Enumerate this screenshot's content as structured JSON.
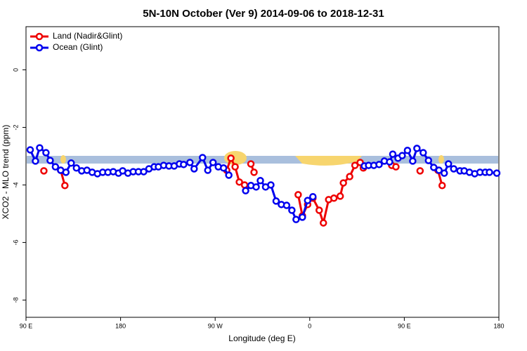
{
  "chart_data": {
    "type": "line",
    "title": "5N-10N October (Ver 9)   2014-09-06 to 2018-12-31",
    "xlabel": "Longitude (deg E)",
    "ylabel": "XCO2 - MLO trend (ppm)",
    "xlim": [
      90,
      540
    ],
    "ylim": [
      1.5,
      -8.6
    ],
    "xticks": [
      {
        "value": 90,
        "label": "90 E"
      },
      {
        "value": 180,
        "label": "180"
      },
      {
        "value": 270,
        "label": "90 W"
      },
      {
        "value": 360,
        "label": "0"
      },
      {
        "value": 450,
        "label": "90 E"
      },
      {
        "value": 540,
        "label": "180"
      }
    ],
    "yticks": [
      0,
      -2,
      -4,
      -6,
      -8
    ],
    "legend": "top-left",
    "series": [
      {
        "name": "Land (Nadir&Glint)",
        "color": "#ee0000",
        "x": [
          107,
          null,
          123,
          127,
          null,
          281,
          285,
          289,
          293,
          298,
          null,
          304,
          307,
          null,
          349,
          353,
          358,
          363,
          369,
          373,
          378,
          383,
          389,
          392,
          398,
          403,
          408,
          411,
          null,
          438,
          442,
          null,
          465,
          null,
          482,
          486
        ],
        "values": [
          -3.51,
          null,
          -3.49,
          -4.02,
          null,
          -3.49,
          -3.07,
          -3.37,
          -3.9,
          -4.0,
          null,
          -3.27,
          -3.56,
          null,
          -4.34,
          -5.07,
          -4.68,
          -4.46,
          -4.88,
          -5.32,
          -4.51,
          -4.46,
          -4.39,
          -3.93,
          -3.71,
          -3.32,
          -3.22,
          -3.41,
          null,
          -3.32,
          -3.37,
          null,
          -3.51,
          null,
          -3.49,
          -4.02
        ]
      },
      {
        "name": "Ocean (Glint)",
        "color": "#0000ee",
        "x": [
          94,
          99,
          103,
          109,
          113,
          118,
          123,
          128,
          133,
          138,
          143,
          148,
          153,
          158,
          163,
          168,
          173,
          178,
          182,
          187,
          192,
          197,
          202,
          207,
          212,
          216,
          221,
          226,
          231,
          236,
          240,
          246,
          250,
          258,
          263,
          268,
          273,
          278,
          283,
          null,
          299,
          304,
          309,
          313,
          318,
          323,
          328,
          333,
          338,
          343,
          347,
          353,
          358,
          363,
          null,
          412,
          416,
          421,
          426,
          431,
          436,
          439,
          444,
          448,
          453,
          458,
          462,
          468,
          473,
          478,
          483,
          488,
          492,
          497,
          503,
          507,
          512,
          517,
          522,
          527,
          531,
          538
        ],
        "values": [
          -2.78,
          -3.17,
          -2.71,
          -2.88,
          -3.15,
          -3.37,
          -3.49,
          -3.56,
          -3.24,
          -3.41,
          -3.51,
          -3.49,
          -3.56,
          -3.61,
          -3.56,
          -3.56,
          -3.54,
          -3.59,
          -3.51,
          -3.59,
          -3.54,
          -3.54,
          -3.54,
          -3.44,
          -3.37,
          -3.37,
          -3.32,
          -3.34,
          -3.34,
          -3.27,
          -3.29,
          -3.22,
          -3.44,
          -3.05,
          -3.49,
          -3.22,
          -3.37,
          -3.41,
          -3.66,
          null,
          -4.2,
          -4.02,
          -4.07,
          -3.85,
          -4.07,
          -4.0,
          -4.56,
          -4.68,
          -4.71,
          -4.88,
          -5.2,
          -5.12,
          -4.54,
          -4.41,
          null,
          -3.34,
          -3.32,
          -3.32,
          -3.29,
          -3.17,
          -3.2,
          -2.93,
          -3.07,
          -2.98,
          -2.8,
          -3.17,
          -2.73,
          -2.88,
          -3.15,
          -3.39,
          -3.49,
          -3.59,
          -3.27,
          -3.44,
          -3.51,
          -3.51,
          -3.56,
          -3.61,
          -3.56,
          -3.56,
          -3.56,
          -3.59
        ]
      }
    ]
  }
}
